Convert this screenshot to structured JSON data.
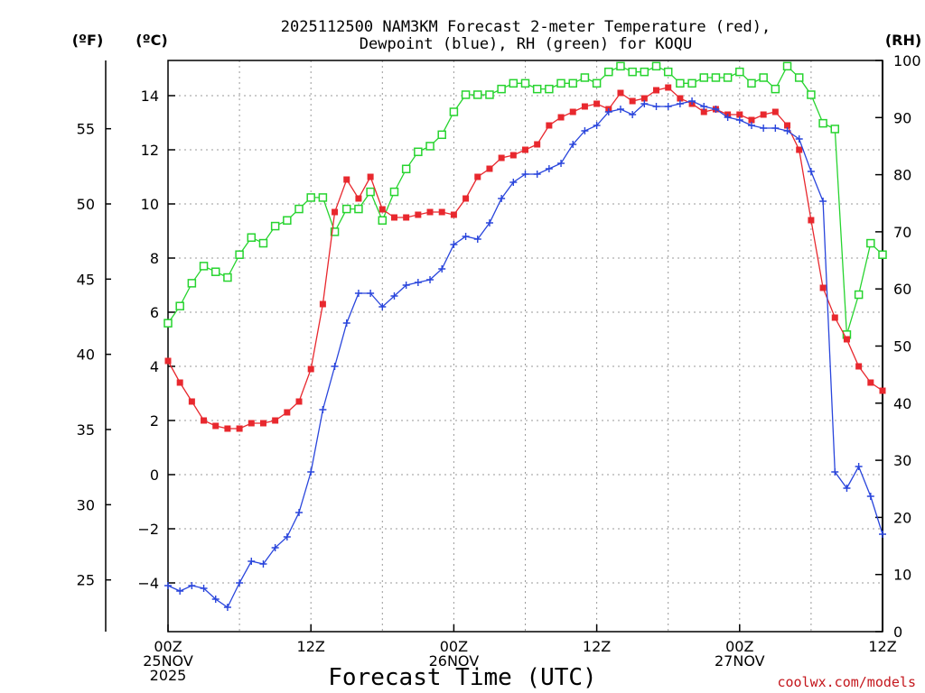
{
  "chart_data": {
    "type": "line",
    "title_line1": "2025112500 NAM3KM Forecast 2-meter Temperature (red),",
    "title_line2": "Dewpoint (blue), RH (green) for KOQU",
    "xlabel": "Forecast Time (UTC)",
    "credit": "coolwx.com/models",
    "units": {
      "fahrenheit": "(ºF)",
      "celsius": "(ºC)",
      "rh": "(RH)"
    },
    "x_range_hours": [
      0,
      60
    ],
    "x_ticks": [
      {
        "hour": 0,
        "lines": [
          "00Z",
          "25NOV",
          "2025"
        ]
      },
      {
        "hour": 12,
        "lines": [
          "12Z"
        ]
      },
      {
        "hour": 24,
        "lines": [
          "00Z",
          "26NOV"
        ]
      },
      {
        "hour": 36,
        "lines": [
          "12Z"
        ]
      },
      {
        "hour": 48,
        "lines": [
          "00Z",
          "27NOV"
        ]
      },
      {
        "hour": 60,
        "lines": [
          "12Z"
        ]
      }
    ],
    "celsius_axis": {
      "min": -5.8,
      "max": 15.3,
      "ticks": [
        -4,
        -2,
        0,
        2,
        4,
        6,
        8,
        10,
        12,
        14
      ]
    },
    "fahrenheit_ticks": [
      25,
      30,
      35,
      40,
      45,
      50,
      55
    ],
    "rh_axis": {
      "min": 0,
      "max": 100,
      "ticks": [
        0,
        10,
        20,
        30,
        40,
        50,
        60,
        70,
        80,
        90,
        100
      ]
    },
    "series": [
      {
        "name": "2-meter Temperature",
        "units": "°C",
        "color": "#e8282e",
        "marker": "filled-square",
        "hours": [
          0,
          1,
          2,
          3,
          4,
          5,
          6,
          7,
          8,
          9,
          10,
          11,
          12,
          13,
          14,
          15,
          16,
          17,
          18,
          19,
          20,
          21,
          22,
          23,
          24,
          25,
          26,
          27,
          28,
          29,
          30,
          31,
          32,
          33,
          34,
          35,
          36,
          37,
          38,
          39,
          40,
          41,
          42,
          43,
          44,
          45,
          46,
          47,
          48,
          49,
          50,
          51,
          52,
          53,
          54,
          55,
          56,
          57,
          58,
          59,
          60
        ],
        "values": [
          4.2,
          3.4,
          2.7,
          2.0,
          1.8,
          1.7,
          1.7,
          1.9,
          1.9,
          2.0,
          2.3,
          2.7,
          3.9,
          6.3,
          9.7,
          10.9,
          10.2,
          11.0,
          9.8,
          9.5,
          9.5,
          9.6,
          9.7,
          9.7,
          9.6,
          10.2,
          11.0,
          11.3,
          11.7,
          11.8,
          12.0,
          12.2,
          12.9,
          13.2,
          13.4,
          13.6,
          13.7,
          13.5,
          14.1,
          13.8,
          13.9,
          14.2,
          14.3,
          13.9,
          13.7,
          13.4,
          13.5,
          13.3,
          13.3,
          13.1,
          13.3,
          13.4,
          12.9,
          12.0,
          9.4,
          6.9,
          5.8,
          5.0,
          4.0,
          3.4,
          3.1
        ]
      },
      {
        "name": "Dewpoint",
        "units": "°C",
        "color": "#2945dc",
        "marker": "plus",
        "hours": [
          0,
          1,
          2,
          3,
          4,
          5,
          6,
          7,
          8,
          9,
          10,
          11,
          12,
          13,
          14,
          15,
          16,
          17,
          18,
          19,
          20,
          21,
          22,
          23,
          24,
          25,
          26,
          27,
          28,
          29,
          30,
          31,
          32,
          33,
          34,
          35,
          36,
          37,
          38,
          39,
          40,
          41,
          42,
          43,
          44,
          45,
          46,
          47,
          48,
          49,
          50,
          51,
          52,
          53,
          54,
          55,
          56,
          57,
          58,
          59,
          60
        ],
        "values": [
          -4.1,
          -4.3,
          -4.1,
          -4.2,
          -4.6,
          -4.9,
          -4.0,
          -3.2,
          -3.3,
          -2.7,
          -2.3,
          -1.4,
          0.1,
          2.4,
          4.0,
          5.6,
          6.7,
          6.7,
          6.2,
          6.6,
          7.0,
          7.1,
          7.2,
          7.6,
          8.5,
          8.8,
          8.7,
          9.3,
          10.2,
          10.8,
          11.1,
          11.1,
          11.3,
          11.5,
          12.2,
          12.7,
          12.9,
          13.4,
          13.5,
          13.3,
          13.7,
          13.6,
          13.6,
          13.7,
          13.8,
          13.6,
          13.5,
          13.2,
          13.1,
          12.9,
          12.8,
          12.8,
          12.7,
          12.4,
          11.2,
          10.1,
          0.1,
          -0.5,
          0.3,
          -0.8,
          -2.2
        ]
      },
      {
        "name": "RH",
        "units": "%",
        "color": "#27d42f",
        "marker": "open-square",
        "hours": [
          0,
          1,
          2,
          3,
          4,
          5,
          6,
          7,
          8,
          9,
          10,
          11,
          12,
          13,
          14,
          15,
          16,
          17,
          18,
          19,
          20,
          21,
          22,
          23,
          24,
          25,
          26,
          27,
          28,
          29,
          30,
          31,
          32,
          33,
          34,
          35,
          36,
          37,
          38,
          39,
          40,
          41,
          42,
          43,
          44,
          45,
          46,
          47,
          48,
          49,
          50,
          51,
          52,
          53,
          54,
          55,
          56,
          57,
          58,
          59,
          60
        ],
        "values": [
          54,
          57,
          61,
          64,
          63,
          62,
          66,
          69,
          68,
          71,
          72,
          74,
          76,
          76,
          70,
          74,
          74,
          77,
          72,
          77,
          81,
          84,
          85,
          87,
          91,
          94,
          94,
          94,
          95,
          96,
          96,
          95,
          95,
          96,
          96,
          97,
          96,
          98,
          99,
          98,
          98,
          99,
          98,
          96,
          96,
          97,
          97,
          97,
          98,
          96,
          97,
          95,
          99,
          97,
          94,
          89,
          88,
          52,
          59,
          68,
          66
        ]
      }
    ]
  }
}
